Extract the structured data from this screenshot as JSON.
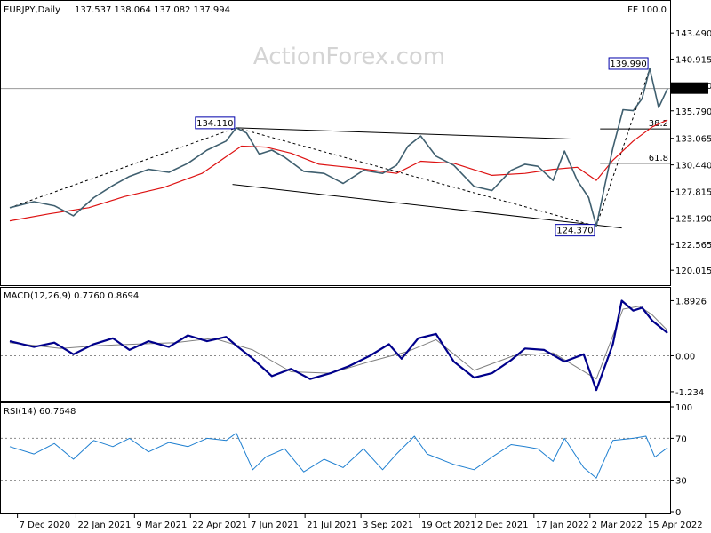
{
  "chart_data": [
    {
      "type": "line",
      "panel": "price",
      "title": "EURJPY,Daily",
      "ohlc_header": "137.537 138.064 137.082 137.994",
      "corner_label": "FE 100.0",
      "watermark": "ActionForex.com",
      "ylim": [
        118.8,
        145.0
      ],
      "y_ticks": [
        "143.490",
        "140.915",
        "138.340",
        "135.790",
        "133.065",
        "130.440",
        "127.815",
        "125.190",
        "122.565",
        "120.015"
      ],
      "y_tick_values": [
        143.49,
        140.915,
        138.34,
        135.79,
        133.065,
        130.44,
        127.815,
        125.19,
        122.565,
        120.015
      ],
      "last_price": "137.994",
      "x_ticks": [
        "7 Dec 2020",
        "22 Jan 2021",
        "9 Mar 2021",
        "22 Apr 2021",
        "7 Jun 2021",
        "21 Jul 2021",
        "3 Sep 2021",
        "19 Oct 2021",
        "2 Dec 2021",
        "17 Jan 2022",
        "2 Mar 2022",
        "15 Apr 2022"
      ],
      "x_tick_dates": [
        "2020-12-07",
        "2021-01-22",
        "2021-03-09",
        "2021-04-22",
        "2021-06-07",
        "2021-07-21",
        "2021-09-03",
        "2021-10-19",
        "2021-12-02",
        "2022-01-17",
        "2022-03-02",
        "2022-04-15"
      ],
      "series": [
        {
          "color": "#3f5f6f",
          "dates": [
            "2020-12-01",
            "2020-12-20",
            "2021-01-05",
            "2021-01-20",
            "2021-02-05",
            "2021-02-20",
            "2021-03-05",
            "2021-03-20",
            "2021-04-05",
            "2021-04-20",
            "2021-05-05",
            "2021-05-20",
            "2021-05-28",
            "2021-06-05",
            "2021-06-15",
            "2021-06-25",
            "2021-07-05",
            "2021-07-20",
            "2021-08-05",
            "2021-08-20",
            "2021-09-05",
            "2021-09-20",
            "2021-10-01",
            "2021-10-10",
            "2021-10-20",
            "2021-11-01",
            "2021-11-15",
            "2021-12-01",
            "2021-12-15",
            "2021-12-30",
            "2022-01-10",
            "2022-01-20",
            "2022-02-01",
            "2022-02-10",
            "2022-02-20",
            "2022-03-01",
            "2022-03-07",
            "2022-03-14",
            "2022-03-20",
            "2022-03-28",
            "2022-04-05",
            "2022-04-12",
            "2022-04-18",
            "2022-04-25",
            "2022-05-02"
          ],
          "values": [
            126.2,
            126.8,
            126.4,
            125.4,
            127.2,
            128.4,
            129.3,
            130.0,
            129.7,
            130.6,
            131.9,
            132.8,
            134.11,
            133.6,
            131.5,
            131.9,
            131.2,
            129.8,
            129.6,
            128.6,
            129.9,
            129.6,
            130.4,
            132.3,
            133.3,
            131.3,
            130.4,
            128.3,
            127.9,
            129.9,
            130.5,
            130.3,
            128.9,
            131.8,
            128.9,
            127.2,
            124.37,
            128.6,
            132.1,
            135.9,
            135.8,
            137.0,
            139.99,
            136.1,
            137.994
          ]
        },
        {
          "name": "",
          "color": "#dd1111",
          "dates": [
            "2020-12-01",
            "2021-01-01",
            "2021-02-01",
            "2021-03-01",
            "2021-04-01",
            "2021-05-01",
            "2021-06-01",
            "2021-06-20",
            "2021-07-10",
            "2021-08-01",
            "2021-09-01",
            "2021-10-01",
            "2021-10-20",
            "2021-11-15",
            "2021-12-15",
            "2022-01-10",
            "2022-02-01",
            "2022-02-20",
            "2022-03-07",
            "2022-03-20",
            "2022-04-05",
            "2022-04-20",
            "2022-05-02"
          ],
          "values": [
            124.9,
            125.6,
            126.2,
            127.3,
            128.2,
            129.6,
            132.3,
            132.2,
            131.6,
            130.5,
            130.1,
            129.6,
            130.8,
            130.6,
            129.4,
            129.6,
            130.0,
            130.2,
            128.9,
            130.9,
            132.8,
            134.2,
            134.9
          ]
        }
      ],
      "annotations": [
        {
          "label": "134.110",
          "x": "2021-05-28",
          "y": 134.11
        },
        {
          "label": "139.990",
          "x": "2022-04-18",
          "y": 139.99
        },
        {
          "label": "124.370",
          "x": "2022-03-07",
          "y": 124.37
        }
      ],
      "fib_levels": [
        {
          "label": "38.2",
          "y": 134.0
        },
        {
          "label": "61.8",
          "y": 130.6
        }
      ],
      "trendlines": [
        {
          "from": [
            "2021-05-28",
            134.11
          ],
          "to": [
            "2022-02-15",
            133.0
          ]
        },
        {
          "from": [
            "2021-05-25",
            128.5
          ],
          "to": [
            "2022-03-27",
            124.2
          ]
        }
      ],
      "dashed_lines": [
        {
          "from": [
            "2020-12-01",
            126.2
          ],
          "to": [
            "2021-05-28",
            134.11
          ]
        },
        {
          "from": [
            "2021-05-28",
            134.11
          ],
          "to": [
            "2022-03-07",
            124.37
          ]
        },
        {
          "from": [
            "2022-03-07",
            124.37
          ],
          "to": [
            "2022-04-18",
            139.99
          ]
        }
      ]
    },
    {
      "type": "line",
      "panel": "macd",
      "title": "MACD(12,26,9) 0.7760 0.8694",
      "ylim": [
        -1.45,
        2.15
      ],
      "y_ticks": [
        "1.8926",
        "0.00",
        "-1.234"
      ],
      "y_tick_values": [
        1.8926,
        0.0,
        -1.234
      ],
      "series": [
        {
          "color": "#00008b",
          "dates": [
            "2020-12-01",
            "2020-12-20",
            "2021-01-05",
            "2021-01-20",
            "2021-02-05",
            "2021-02-20",
            "2021-03-05",
            "2021-03-20",
            "2021-04-05",
            "2021-04-20",
            "2021-05-05",
            "2021-05-20",
            "2021-05-28",
            "2021-06-10",
            "2021-06-25",
            "2021-07-10",
            "2021-07-25",
            "2021-08-10",
            "2021-08-25",
            "2021-09-10",
            "2021-09-25",
            "2021-10-05",
            "2021-10-18",
            "2021-11-01",
            "2021-11-15",
            "2021-12-01",
            "2021-12-15",
            "2021-12-30",
            "2022-01-10",
            "2022-01-25",
            "2022-02-10",
            "2022-02-25",
            "2022-03-07",
            "2022-03-20",
            "2022-03-27",
            "2022-04-05",
            "2022-04-12",
            "2022-04-20",
            "2022-05-02"
          ],
          "values": [
            0.5,
            0.3,
            0.45,
            0.05,
            0.4,
            0.6,
            0.2,
            0.5,
            0.3,
            0.7,
            0.5,
            0.65,
            0.35,
            -0.1,
            -0.7,
            -0.45,
            -0.8,
            -0.6,
            -0.35,
            0.0,
            0.4,
            -0.1,
            0.6,
            0.75,
            -0.2,
            -0.75,
            -0.6,
            -0.15,
            0.25,
            0.2,
            -0.2,
            0.05,
            -1.18,
            0.4,
            1.89,
            1.55,
            1.65,
            1.2,
            0.78
          ]
        },
        {
          "color": "#808080",
          "dates": [
            "2020-12-01",
            "2021-01-10",
            "2021-02-10",
            "2021-03-10",
            "2021-04-10",
            "2021-05-10",
            "2021-06-10",
            "2021-07-10",
            "2021-08-10",
            "2021-09-10",
            "2021-10-10",
            "2021-11-01",
            "2021-12-01",
            "2022-01-01",
            "2022-02-01",
            "2022-03-07",
            "2022-03-28",
            "2022-04-10",
            "2022-04-20",
            "2022-05-02"
          ],
          "values": [
            0.45,
            0.25,
            0.35,
            0.4,
            0.45,
            0.6,
            0.2,
            -0.55,
            -0.6,
            -0.2,
            0.15,
            0.55,
            -0.5,
            0.0,
            0.1,
            -0.8,
            1.6,
            1.7,
            1.4,
            0.87
          ]
        }
      ]
    },
    {
      "type": "line",
      "panel": "rsi",
      "title": "RSI(14) 60.7648",
      "ylim": [
        0,
        100
      ],
      "y_ticks": [
        "100",
        "70",
        "30",
        "0"
      ],
      "y_tick_values": [
        100,
        70,
        30,
        0
      ],
      "series": [
        {
          "color": "#1e7fd0",
          "dates": [
            "2020-12-01",
            "2020-12-20",
            "2021-01-05",
            "2021-01-20",
            "2021-02-05",
            "2021-02-20",
            "2021-03-05",
            "2021-03-20",
            "2021-04-05",
            "2021-04-20",
            "2021-05-05",
            "2021-05-20",
            "2021-05-28",
            "2021-06-10",
            "2021-06-20",
            "2021-07-05",
            "2021-07-20",
            "2021-08-05",
            "2021-08-20",
            "2021-09-05",
            "2021-09-20",
            "2021-10-01",
            "2021-10-15",
            "2021-10-25",
            "2021-11-15",
            "2021-12-01",
            "2021-12-15",
            "2021-12-30",
            "2022-01-10",
            "2022-01-20",
            "2022-02-01",
            "2022-02-10",
            "2022-02-25",
            "2022-03-07",
            "2022-03-20",
            "2022-04-05",
            "2022-04-15",
            "2022-04-22",
            "2022-05-02"
          ],
          "values": [
            62,
            55,
            65,
            50,
            68,
            62,
            70,
            57,
            66,
            62,
            70,
            68,
            75,
            40,
            52,
            60,
            38,
            50,
            42,
            60,
            40,
            55,
            72,
            55,
            45,
            40,
            52,
            64,
            62,
            60,
            48,
            70,
            42,
            32,
            68,
            70,
            72,
            52,
            61
          ]
        }
      ]
    }
  ]
}
